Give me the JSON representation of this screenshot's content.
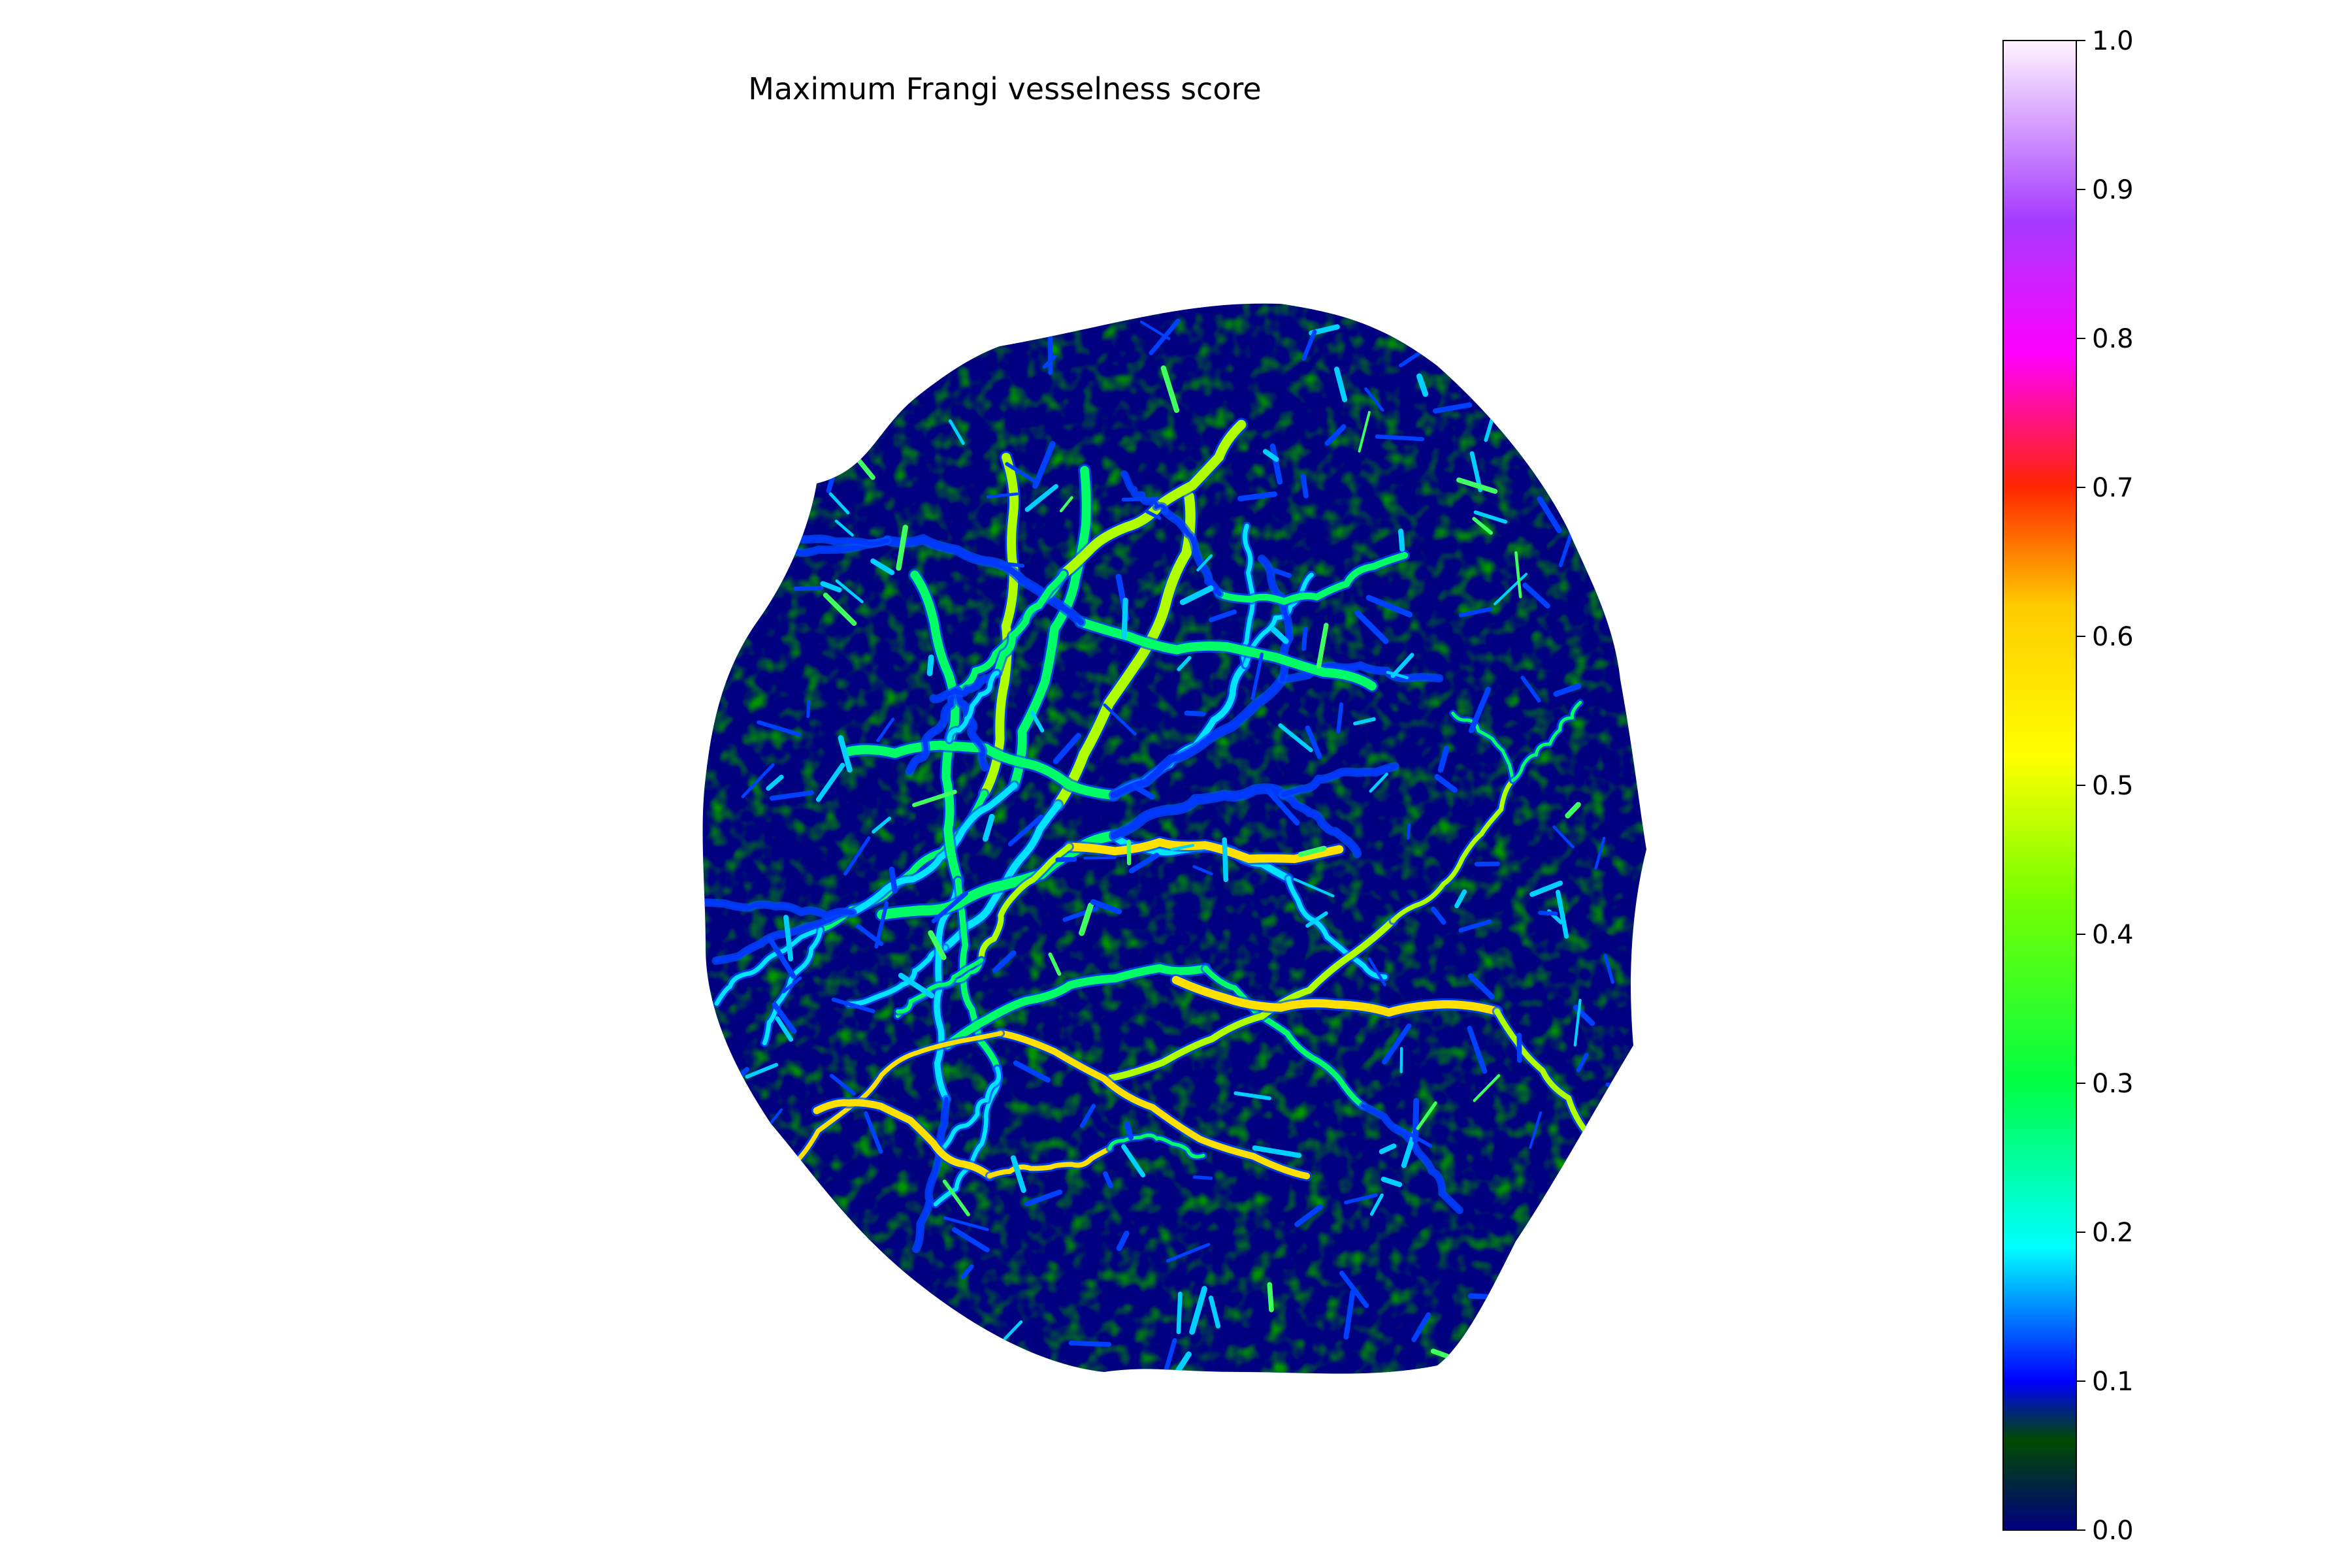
{
  "figure": {
    "title": "Maximum Frangi vesselness score"
  },
  "colorbar": {
    "colormap": "gist_ncar",
    "range": [
      0.0,
      1.0
    ],
    "ticks": [
      "0.0",
      "0.1",
      "0.2",
      "0.3",
      "0.4",
      "0.5",
      "0.6",
      "0.7",
      "0.8",
      "0.9",
      "1.0"
    ],
    "stops": [
      "#000080",
      "#004b00",
      "#0000ff",
      "#00ffff",
      "#00ff44",
      "#7dff00",
      "#ffff00",
      "#ffcc00",
      "#ff2600",
      "#ff00ff",
      "#a53cff",
      "#fff4ff"
    ]
  },
  "image": {
    "subject": "vesselness map",
    "background_color": "#000080",
    "tissue_color": "#004b00"
  }
}
